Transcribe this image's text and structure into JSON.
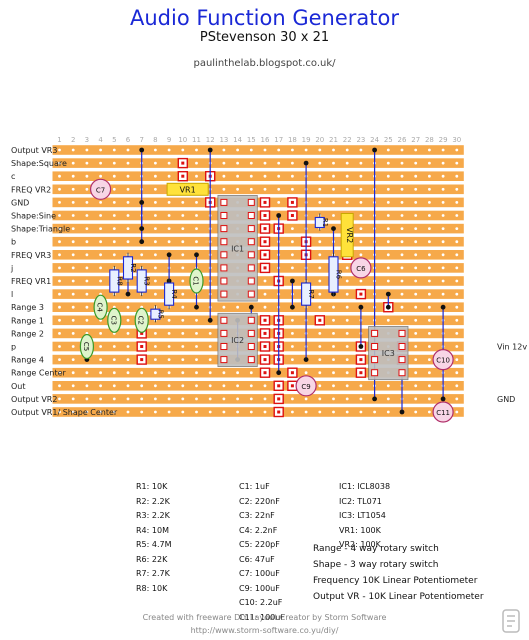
{
  "header": {
    "title": "Audio Function Generator",
    "subtitle": "PStevenson 30 x 21",
    "url": "paulinthelab.blogspot.co.uk/"
  },
  "board": {
    "columns": 30,
    "rows": 21,
    "column_numbers": [
      "1",
      "2",
      "3",
      "4",
      "5",
      "6",
      "7",
      "8",
      "9",
      "10",
      "11",
      "12",
      "13",
      "14",
      "15",
      "16",
      "17",
      "18",
      "19",
      "20",
      "21",
      "22",
      "23",
      "24",
      "25",
      "26",
      "27",
      "28",
      "29",
      "30"
    ],
    "left_labels": [
      "Output VR3",
      "Shape:Square",
      "c",
      "FREQ VR2",
      "GND",
      "Shape:Sine",
      "Shape:Triangle",
      "b",
      "FREQ VR3",
      "j",
      "FREQ VR1",
      "l",
      "Range 3",
      "Range 1",
      "Range 2",
      "p",
      "Range 4",
      "Range Center",
      "Out",
      "Output VR2",
      "Output VR1/ Shape Center"
    ],
    "right_labels": [
      {
        "row": 15,
        "text": "Vin 12v"
      },
      {
        "row": 19,
        "text": "GND"
      }
    ],
    "strip_color": "#f6a94a",
    "accent_color": "#1a28d6"
  },
  "components": {
    "resistors": [
      "R1",
      "R2",
      "R3",
      "R4",
      "R5",
      "R6",
      "R7",
      "R8"
    ],
    "capacitors": [
      "C1",
      "C2",
      "C3",
      "C4",
      "C5",
      "C6",
      "C7",
      "C9",
      "C10",
      "C11"
    ],
    "ics": [
      "IC1",
      "IC2",
      "IC3"
    ],
    "pots": [
      "VR1",
      "VR2"
    ]
  },
  "parts_list": {
    "resistors": [
      "R1: 10K",
      "R2: 2.2K",
      "R3: 2.2K",
      "R4: 10M",
      "R5: 4.7M",
      "R6: 22K",
      "R7: 2.7K",
      "R8: 10K"
    ],
    "capacitors": [
      "C1: 1uF",
      "C2: 220nF",
      "C3: 22nF",
      "C4: 2.2nF",
      "C5: 220pF",
      "C6: 47uF",
      "C7: 100uF",
      "C9: 100uF",
      "C10: 2.2uF",
      "C11: 100uF"
    ],
    "ics": [
      "IC1: ICL8038",
      "IC2: TL071",
      "IC3: LT1054",
      "VR1: 100K",
      "VR2: 100K"
    ]
  },
  "notes": [
    "Range - 4 way rotary switch",
    "Shape - 3 way rotary switch",
    "Frequency 10K Linear Potentiometer",
    "Output VR -  10K Linear Potentiometer"
  ],
  "footer": {
    "line1": "Created with freeware DIY Layout Creator by Storm Software",
    "line2": "http://www.storm-software.co.yu/diy/"
  }
}
